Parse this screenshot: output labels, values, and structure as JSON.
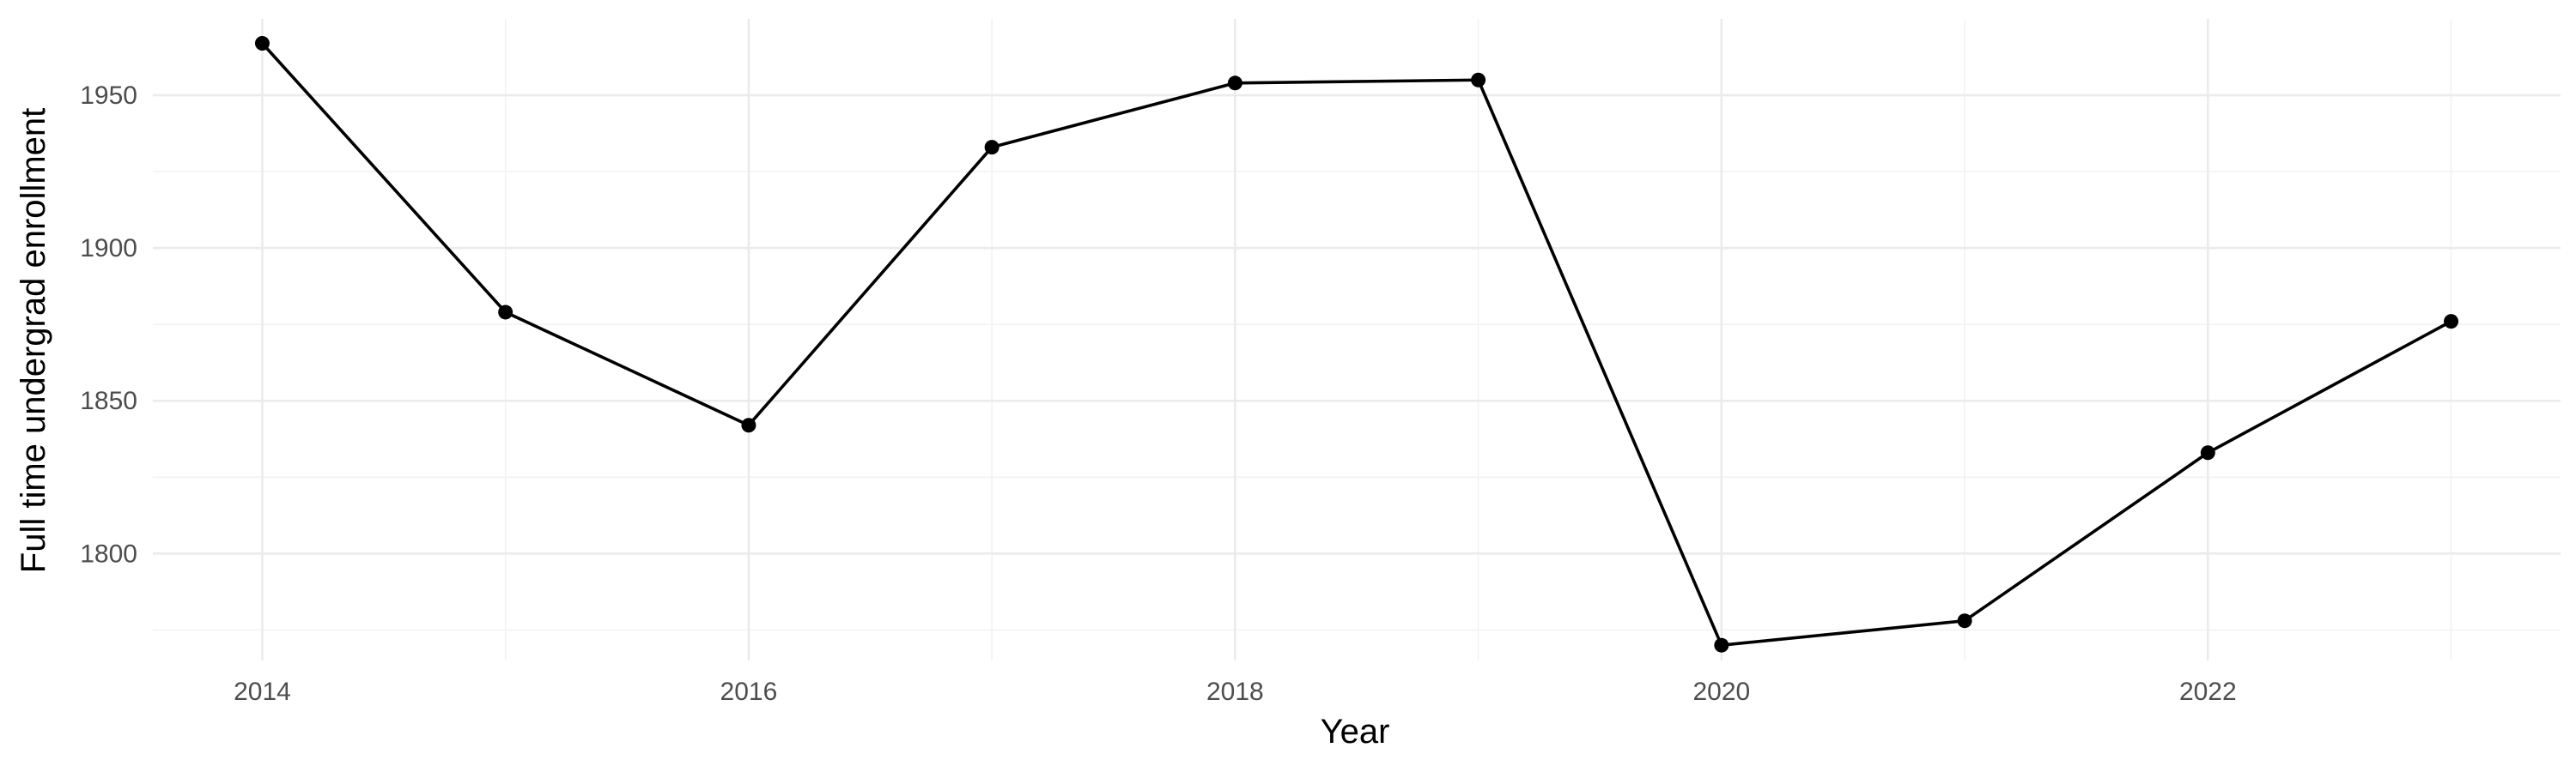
{
  "chart_data": {
    "type": "line",
    "title": "",
    "xlabel": "Year",
    "ylabel": "Full time undergrad enrollment",
    "x": [
      2014,
      2015,
      2016,
      2017,
      2018,
      2019,
      2020,
      2021,
      2022,
      2023
    ],
    "series": [
      {
        "values": [
          1967,
          1879,
          1842,
          1933,
          1954,
          1955,
          1770,
          1778,
          1833,
          1876
        ]
      }
    ],
    "xlim": [
      2013.55,
      2023.45
    ],
    "ylim": [
      1765,
      1975
    ],
    "x_ticks": [
      2014,
      2016,
      2018,
      2020,
      2022
    ],
    "x_tick_labels": [
      "2014",
      "2016",
      "2018",
      "2020",
      "2022"
    ],
    "y_ticks": [
      1800,
      1850,
      1900,
      1950
    ],
    "y_tick_labels": [
      "1800",
      "1850",
      "1900",
      "1950"
    ],
    "grid": true,
    "legend": "none",
    "colors": {
      "line": "#000000",
      "point": "#000000",
      "grid": "#ebebeb",
      "background": "#ffffff"
    }
  }
}
